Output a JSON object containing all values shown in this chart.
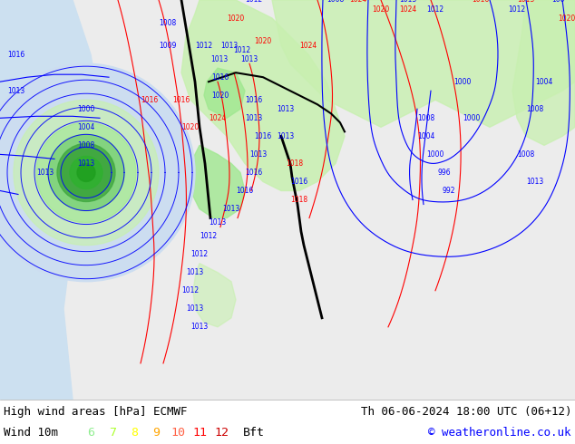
{
  "title_left": "High wind areas [hPa] ECMWF",
  "title_right": "Th 06-06-2024 18:00 UTC (06+12)",
  "subtitle_left": "Wind 10m",
  "copyright": "© weatheronline.co.uk",
  "bft_values": [
    "6",
    "7",
    "8",
    "9",
    "10",
    "11",
    "12"
  ],
  "bft_colors": [
    "#90ee90",
    "#adff2f",
    "#ffff00",
    "#ffa500",
    "#ff6347",
    "#ff0000",
    "#cc0000"
  ],
  "bft_label": "Bft",
  "bg_color": "#f0f0f0",
  "map_bg": "#e8e8e8",
  "ocean_color": "#c0d8f0",
  "land_color": "#e8e8e8",
  "green_light": "#c8f0b0",
  "green_mid": "#a0e890",
  "green_dark": "#70cc70",
  "green_darker": "#40a840",
  "figsize": [
    6.34,
    4.9
  ],
  "dpi": 100,
  "title_fontsize": 9,
  "subtitle_fontsize": 9,
  "bft_fontsize": 9.5
}
